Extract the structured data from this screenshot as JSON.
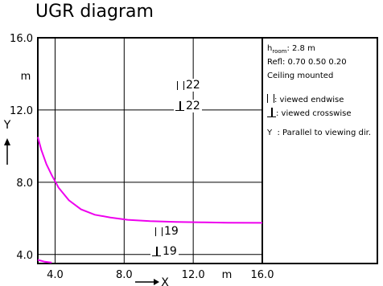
{
  "title": "UGR diagram",
  "legend": {
    "room_height_prefix": "h",
    "room_height_sub": "room",
    "room_height_value": ": 2.8 m",
    "reflectances": "Refl: 0.70 0.50 0.20",
    "mounting": "Ceiling mounted",
    "endwise_text": ": viewed endwise",
    "crosswise_text": ": viewed crosswise",
    "parallel_symbol": "Y",
    "parallel_text": ": Parallel to viewing dir."
  },
  "labels": {
    "upper_endwise": "22",
    "upper_crosswise": "22",
    "lower_endwise": "19",
    "lower_crosswise": "19"
  },
  "chart_data": {
    "type": "line",
    "title": "UGR diagram",
    "xlabel": "X",
    "ylabel": "Y",
    "x_unit": "m",
    "y_unit": "m",
    "xlim": [
      3.0,
      16.0
    ],
    "ylim": [
      3.5,
      16.0
    ],
    "x_ticks": [
      4.0,
      8.0,
      12.0,
      16.0
    ],
    "y_ticks": [
      4.0,
      8.0,
      12.0,
      16.0
    ],
    "x_tick_labels": [
      "4.0",
      "8.0",
      "12.0",
      "16.0"
    ],
    "y_tick_labels": [
      "4.0",
      "8.0",
      "12.0",
      "16.0"
    ],
    "grid": true,
    "series": [
      {
        "color": "#ee00ee",
        "x": [
          3.0,
          3.2,
          3.5,
          3.8,
          4.2,
          4.8,
          5.5,
          6.3,
          7.2,
          8.2,
          9.5,
          11.0,
          12.5,
          14.0,
          16.0
        ],
        "y": [
          10.5,
          9.8,
          9.0,
          8.4,
          7.7,
          7.0,
          6.5,
          6.2,
          6.05,
          5.92,
          5.85,
          5.8,
          5.78,
          5.76,
          5.75
        ]
      },
      {
        "color": "#ee00ee",
        "x": [
          3.0,
          3.4,
          3.8
        ],
        "y": [
          3.7,
          3.6,
          3.55
        ]
      }
    ],
    "contour_levels": [
      {
        "endwise": 22,
        "crosswise": 22,
        "y": 12.0
      },
      {
        "endwise": 19,
        "crosswise": 19,
        "y": 4.0
      }
    ]
  }
}
